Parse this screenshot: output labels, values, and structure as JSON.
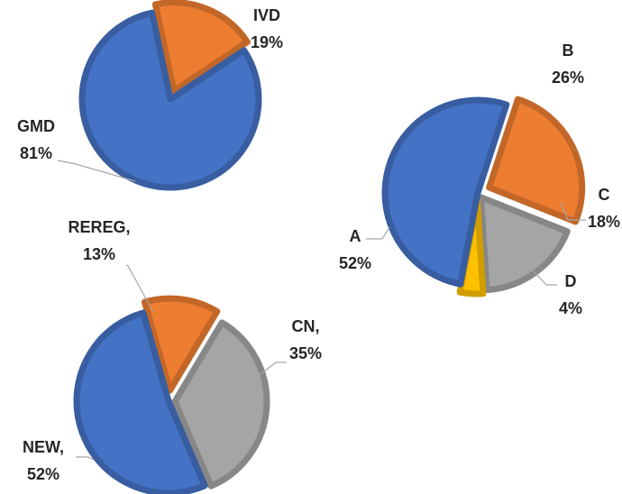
{
  "colors": {
    "blue": "#4472C4",
    "orange": "#ED7D31",
    "gray": "#A5A5A5",
    "gold": "#FFC000",
    "leader": "#A6A6A6",
    "label": "#262626"
  },
  "chart_data": [
    {
      "type": "pie",
      "slices": [
        {
          "category": "IVD",
          "value": 19,
          "label_line1": "IVD",
          "label_line2": "19%",
          "color_key": "orange"
        },
        {
          "category": "GMD",
          "value": 81,
          "label_line1": "GMD",
          "label_line2": "81%",
          "color_key": "blue"
        }
      ]
    },
    {
      "type": "pie",
      "slices": [
        {
          "category": "B",
          "value": 26,
          "label_line1": "B",
          "label_line2": "26%",
          "color_key": "orange"
        },
        {
          "category": "C",
          "value": 18,
          "label_line1": "C",
          "label_line2": "18%",
          "color_key": "gray"
        },
        {
          "category": "D",
          "value": 4,
          "label_line1": "D",
          "label_line2": "4%",
          "color_key": "gold"
        },
        {
          "category": "A",
          "value": 52,
          "label_line1": "A",
          "label_line2": "52%",
          "color_key": "blue"
        }
      ]
    },
    {
      "type": "pie",
      "slices": [
        {
          "category": "REREG",
          "value": 13,
          "label_line1": "REREG,",
          "label_line2": "13%",
          "color_key": "orange"
        },
        {
          "category": "CN",
          "value": 35,
          "label_line1": "CN,",
          "label_line2": "35%",
          "color_key": "gray"
        },
        {
          "category": "NEW",
          "value": 52,
          "label_line1": "NEW,",
          "label_line2": "52%",
          "color_key": "blue"
        }
      ]
    }
  ]
}
